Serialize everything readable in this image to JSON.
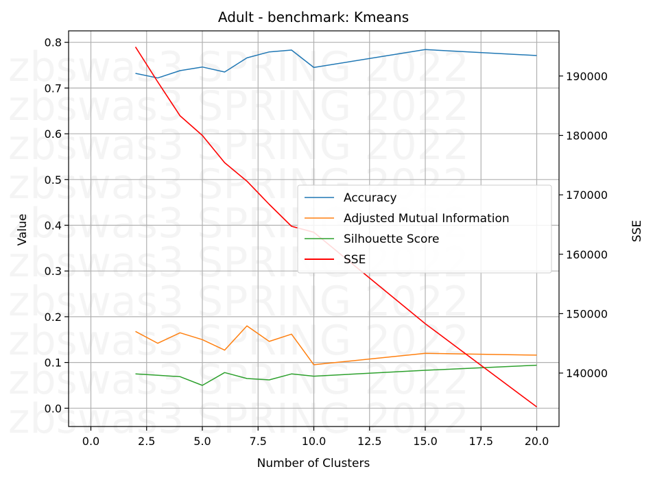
{
  "chart_data": {
    "type": "line",
    "title": "Adult - benchmark: Kmeans",
    "xlabel": "Number of Clusters",
    "ylabel": "Value",
    "y2label": "SSE",
    "watermark": "zbswas3 SPRING 2022",
    "xlim": [
      -1,
      21
    ],
    "ylim": [
      -0.04,
      0.825
    ],
    "y2lim": [
      131000,
      197600
    ],
    "x_ticks": [
      "0.0",
      "2.5",
      "5.0",
      "7.5",
      "10.0",
      "12.5",
      "15.0",
      "17.5",
      "20.0"
    ],
    "y_ticks": [
      "0.0",
      "0.1",
      "0.2",
      "0.3",
      "0.4",
      "0.5",
      "0.6",
      "0.7",
      "0.8"
    ],
    "y2_ticks": [
      "140000",
      "150000",
      "160000",
      "170000",
      "180000",
      "190000"
    ],
    "grid": true,
    "legend_position": "center-right",
    "x": [
      2,
      3,
      4,
      5,
      6,
      7,
      8,
      9,
      10,
      15,
      20
    ],
    "series": [
      {
        "name": "Accuracy",
        "axis": "left",
        "color": "#1f77b4",
        "values": [
          0.732,
          0.722,
          0.738,
          0.746,
          0.735,
          0.766,
          0.779,
          0.783,
          0.745,
          0.784,
          0.771
        ]
      },
      {
        "name": "Adjusted Mutual Information",
        "axis": "left",
        "color": "#ff7f0e",
        "values": [
          0.168,
          0.142,
          0.165,
          0.15,
          0.127,
          0.18,
          0.146,
          0.162,
          0.095,
          0.12,
          0.116
        ]
      },
      {
        "name": "Silhouette Score",
        "axis": "left",
        "color": "#2ca02c",
        "values": [
          0.075,
          0.072,
          0.069,
          0.05,
          0.078,
          0.065,
          0.062,
          0.075,
          0.07,
          0.083,
          0.094
        ]
      },
      {
        "name": "SSE",
        "axis": "right",
        "color": "#ff0000",
        "values": [
          194900,
          189000,
          183300,
          180000,
          175400,
          172300,
          168400,
          164700,
          163700,
          148300,
          134300
        ]
      }
    ]
  }
}
